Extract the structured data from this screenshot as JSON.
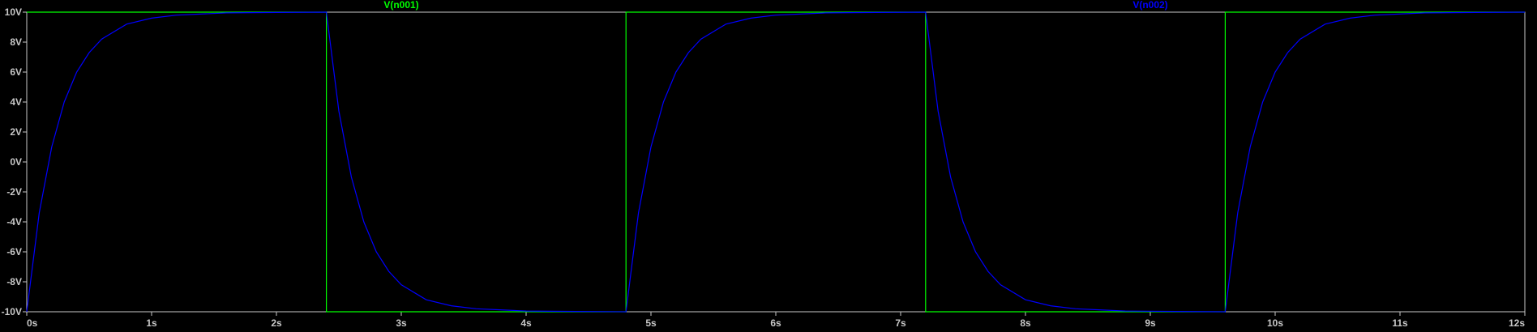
{
  "chart_data": {
    "type": "line",
    "xlabel": "",
    "ylabel": "",
    "xlim": [
      0,
      12
    ],
    "ylim": [
      -10,
      10
    ],
    "x_ticks": [
      0,
      1,
      2,
      3,
      4,
      5,
      6,
      7,
      8,
      9,
      10,
      11,
      12
    ],
    "x_tick_labels": [
      "0s",
      "1s",
      "2s",
      "3s",
      "4s",
      "5s",
      "6s",
      "7s",
      "8s",
      "9s",
      "10s",
      "11s",
      "12s"
    ],
    "y_ticks": [
      10,
      8,
      6,
      4,
      2,
      0,
      -2,
      -4,
      -6,
      -8,
      -10
    ],
    "y_tick_labels": [
      "10V",
      "8V",
      "6V",
      "4V",
      "2V",
      "0V",
      "-2V",
      "-4V",
      "-6V",
      "-8V",
      "-10V"
    ],
    "grid": false,
    "background": "#000000",
    "axis_color": "#c8c8c8",
    "legend_placement": "top",
    "series": [
      {
        "name": "V(n001)",
        "color": "#00ff00",
        "description": "square wave",
        "x": [
          0,
          2.4,
          2.4,
          4.8,
          4.8,
          7.2,
          7.2,
          9.6,
          9.6,
          12
        ],
        "y": [
          10,
          10,
          -10,
          -10,
          10,
          10,
          -10,
          -10,
          10,
          10
        ]
      },
      {
        "name": "V(n002)",
        "color": "#0000ff",
        "description": "RC charge/discharge",
        "x": [
          0,
          0.1,
          0.2,
          0.3,
          0.4,
          0.5,
          0.6,
          0.8,
          1.0,
          1.2,
          1.6,
          2.0,
          2.4,
          2.5,
          2.6,
          2.7,
          2.8,
          2.9,
          3.0,
          3.2,
          3.4,
          3.6,
          4.0,
          4.4,
          4.8,
          4.9,
          5.0,
          5.1,
          5.2,
          5.3,
          5.4,
          5.6,
          5.8,
          6.0,
          6.4,
          6.8,
          7.2,
          7.3,
          7.4,
          7.5,
          7.6,
          7.7,
          7.8,
          8.0,
          8.2,
          8.4,
          8.8,
          9.2,
          9.6,
          9.7,
          9.8,
          9.9,
          10.0,
          10.1,
          10.2,
          10.4,
          10.6,
          10.8,
          11.2,
          11.6,
          12.0
        ],
        "y": [
          -10,
          -3.4,
          1.0,
          4.0,
          6.0,
          7.3,
          8.2,
          9.2,
          9.6,
          9.8,
          9.95,
          9.98,
          10,
          3.4,
          -1.0,
          -4.0,
          -6.0,
          -7.3,
          -8.2,
          -9.2,
          -9.6,
          -9.8,
          -9.95,
          -9.98,
          -10,
          -3.4,
          1.0,
          4.0,
          6.0,
          7.3,
          8.2,
          9.2,
          9.6,
          9.8,
          9.95,
          9.98,
          10,
          3.4,
          -1.0,
          -4.0,
          -6.0,
          -7.3,
          -8.2,
          -9.2,
          -9.6,
          -9.8,
          -9.95,
          -9.98,
          -10,
          -3.4,
          1.0,
          4.0,
          6.0,
          7.3,
          8.2,
          9.2,
          9.6,
          9.8,
          9.95,
          9.98,
          10
        ]
      }
    ]
  }
}
